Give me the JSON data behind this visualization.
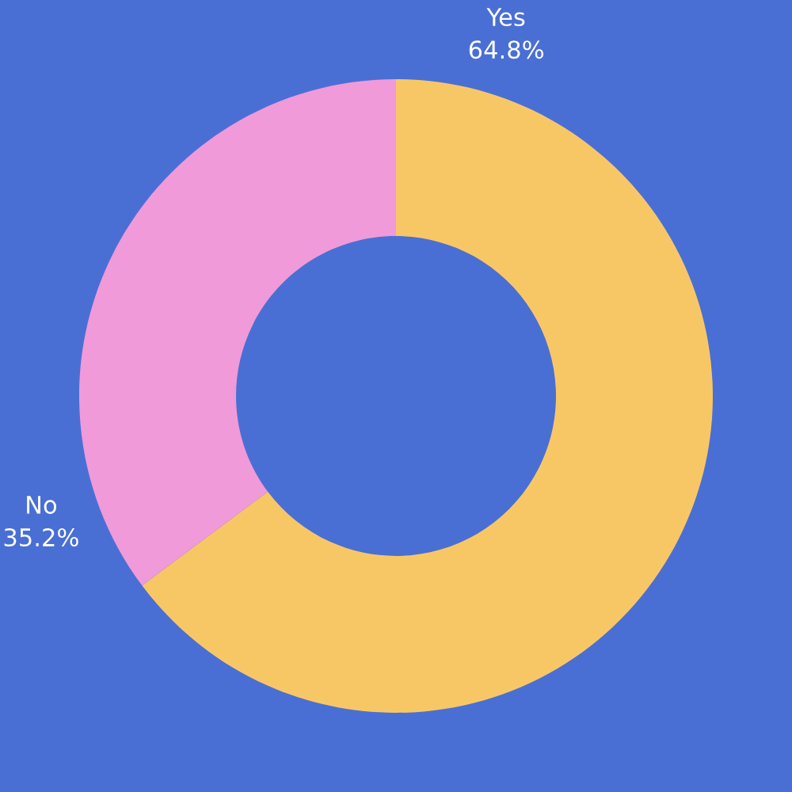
{
  "chart_data": {
    "type": "donut",
    "categories": [
      "Yes",
      "No"
    ],
    "values": [
      64.8,
      35.2
    ],
    "colors": [
      "#f8c765",
      "#f09ad9"
    ],
    "value_labels": [
      "64.8%",
      "35.2%"
    ]
  }
}
